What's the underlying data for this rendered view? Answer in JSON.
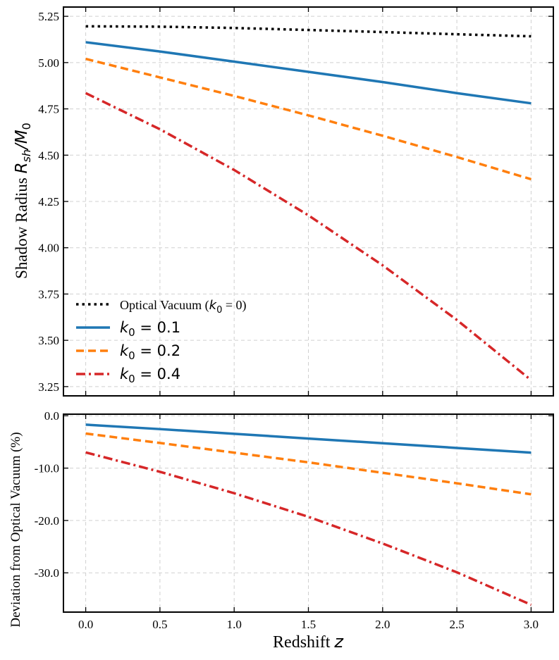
{
  "chart_data": [
    {
      "type": "line",
      "panel": "top",
      "ylabel": {
        "prefix": "Shadow Radius ",
        "math_main": "R",
        "math_sub": "sh",
        "math_rest": "/",
        "math_main2": "M",
        "math_sub2": "0"
      },
      "xlim": [
        -0.15,
        3.15
      ],
      "ylim": [
        3.2,
        5.3
      ],
      "yticks": [
        3.25,
        3.5,
        3.75,
        4.0,
        4.25,
        4.5,
        4.75,
        5.0,
        5.25
      ],
      "ytick_labels": [
        "3.25",
        "3.50",
        "3.75",
        "4.00",
        "4.25",
        "4.50",
        "4.75",
        "5.00",
        "5.25"
      ],
      "xticks": [
        0,
        0.5,
        1.0,
        1.5,
        2.0,
        2.5,
        3.0
      ],
      "grid": true,
      "legend": "lower-left",
      "x": [
        0,
        0.5,
        1.0,
        1.5,
        2.0,
        2.5,
        3.0
      ],
      "series": [
        {
          "name": "Optical Vacuum (k0 = 0)",
          "color": "#000000",
          "dash": "dotted",
          "label_text": "Optical Vacuum (",
          "label_math": "k",
          "label_sub": "0",
          "label_tail": " = 0)",
          "values": [
            5.196,
            5.194,
            5.187,
            5.176,
            5.165,
            5.153,
            5.142
          ]
        },
        {
          "name": "k0 = 0.1",
          "color": "#1f77b4",
          "dash": "solid",
          "label_text": "",
          "label_math": "k",
          "label_sub": "0",
          "label_tail": " = 0.1",
          "values": [
            5.11,
            5.06,
            5.005,
            4.95,
            4.895,
            4.835,
            4.78
          ]
        },
        {
          "name": "k0 = 0.2",
          "color": "#ff7f0e",
          "dash": "dashed",
          "label_text": "",
          "label_math": "k",
          "label_sub": "0",
          "label_tail": " = 0.2",
          "values": [
            5.02,
            4.92,
            4.82,
            4.715,
            4.605,
            4.49,
            4.37
          ]
        },
        {
          "name": "k0 = 0.4",
          "color": "#d62728",
          "dash": "dashdot",
          "label_text": "",
          "label_math": "k",
          "label_sub": "0",
          "label_tail": " = 0.4",
          "values": [
            4.835,
            4.64,
            4.42,
            4.175,
            3.905,
            3.61,
            3.285
          ]
        }
      ]
    },
    {
      "type": "line",
      "panel": "bottom",
      "ylabel": "Deviation from Optical Vacuum (%)",
      "xlabel": {
        "prefix": "Redshift ",
        "math": "z"
      },
      "xlim": [
        -0.15,
        3.15
      ],
      "ylim": [
        -37.5,
        0.3
      ],
      "yticks": [
        0,
        -10,
        -20,
        -30
      ],
      "ytick_labels": [
        "0.0",
        "-10.0",
        "-20.0",
        "-30.0"
      ],
      "xticks": [
        0,
        0.5,
        1.0,
        1.5,
        2.0,
        2.5,
        3.0
      ],
      "xtick_labels": [
        "0.0",
        "0.5",
        "1.0",
        "1.5",
        "2.0",
        "2.5",
        "3.0"
      ],
      "grid": true,
      "x": [
        0,
        0.5,
        1.0,
        1.5,
        2.0,
        2.5,
        3.0
      ],
      "series": [
        {
          "name": "k0 = 0.1",
          "color": "#1f77b4",
          "dash": "solid",
          "values": [
            -1.7,
            -2.55,
            -3.45,
            -4.35,
            -5.25,
            -6.15,
            -7.05
          ]
        },
        {
          "name": "k0 = 0.2",
          "color": "#ff7f0e",
          "dash": "dashed",
          "values": [
            -3.4,
            -5.2,
            -7.05,
            -8.9,
            -10.9,
            -12.9,
            -15.0
          ]
        },
        {
          "name": "k0 = 0.4",
          "color": "#d62728",
          "dash": "dashdot",
          "values": [
            -7.0,
            -10.7,
            -14.8,
            -19.3,
            -24.4,
            -29.9,
            -36.1
          ]
        }
      ]
    }
  ]
}
